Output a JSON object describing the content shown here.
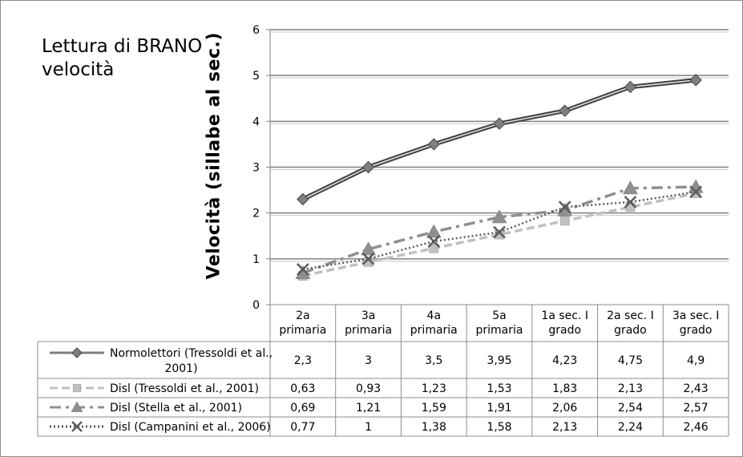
{
  "chart_data": {
    "type": "line",
    "title": "Lettura di BRANO\nvelocità",
    "ylabel": "Velocità (sillabe al sec.)",
    "ylim": [
      0,
      6
    ],
    "yticks": [
      "0",
      "1",
      "2",
      "3",
      "4",
      "5",
      "6"
    ],
    "grid": true,
    "legend": "data-table",
    "categories": [
      "2a primaria",
      "3a primaria",
      "4a primaria",
      "5a primaria",
      "1a sec. I grado",
      "2a sec. I grado",
      "3a sec. I grado"
    ],
    "category_lines": [
      [
        "2a",
        "primaria"
      ],
      [
        "3a",
        "primaria"
      ],
      [
        "4a",
        "primaria"
      ],
      [
        "5a",
        "primaria"
      ],
      [
        "1a sec. I",
        "grado"
      ],
      [
        "2a sec. I",
        "grado"
      ],
      [
        "3a sec. I",
        "grado"
      ]
    ],
    "series": [
      {
        "name": "Normolettori (Tressoldi et al., 2001)",
        "name_lines": [
          "Normolettori (Tressoldi et al.,",
          "2001)"
        ],
        "color": "#7f7f7f",
        "marker": "diamond",
        "values": [
          2.3,
          3,
          3.5,
          3.95,
          4.23,
          4.75,
          4.9
        ],
        "labels": [
          "2,3",
          "3",
          "3,5",
          "3,95",
          "4,23",
          "4,75",
          "4,9"
        ]
      },
      {
        "name": "Disl (Tressoldi et al., 2001)",
        "name_lines": [
          "Disl (Tressoldi et al., 2001)"
        ],
        "color": "#c0c0c0",
        "marker": "square",
        "values": [
          0.63,
          0.93,
          1.23,
          1.53,
          1.83,
          2.13,
          2.43
        ],
        "labels": [
          "0,63",
          "0,93",
          "1,23",
          "1,53",
          "1,83",
          "2,13",
          "2,43"
        ]
      },
      {
        "name": "Disl (Stella et al., 2001)",
        "name_lines": [
          "Disl (Stella et al., 2001)"
        ],
        "color": "#8f8f8f",
        "marker": "triangle",
        "values": [
          0.69,
          1.21,
          1.59,
          1.91,
          2.06,
          2.54,
          2.57
        ],
        "labels": [
          "0,69",
          "1,21",
          "1,59",
          "1,91",
          "2,06",
          "2,54",
          "2,57"
        ]
      },
      {
        "name": "Disl (Campanini et al., 2006)",
        "name_lines": [
          "Disl (Campanini et al., 2006)"
        ],
        "color": "#5a5a5a",
        "marker": "x",
        "values": [
          0.77,
          1,
          1.38,
          1.58,
          2.13,
          2.24,
          2.46
        ],
        "labels": [
          "0,77",
          "1",
          "1,38",
          "1,58",
          "2,13",
          "2,24",
          "2,46"
        ]
      }
    ]
  }
}
